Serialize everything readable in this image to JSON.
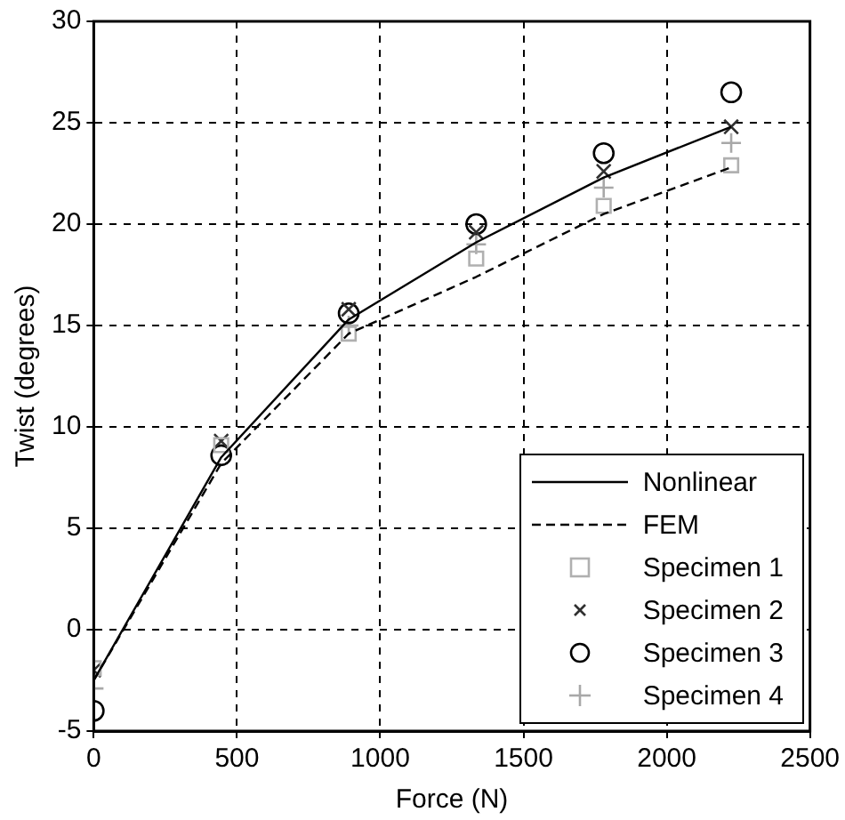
{
  "chart_data": {
    "type": "line",
    "xlabel": "Force (N)",
    "ylabel": "Twist (degrees)",
    "x": [
      0,
      445,
      890,
      1335,
      1780,
      2225
    ],
    "xlim": [
      0,
      2500
    ],
    "xticks": [
      0,
      500,
      1000,
      1500,
      2000,
      2500
    ],
    "ylim": [
      -5,
      30
    ],
    "yticks": [
      -5,
      0,
      5,
      10,
      15,
      20,
      25,
      30
    ],
    "grid": true,
    "legend": "bottom right",
    "series": [
      {
        "name": "Nonlinear",
        "type": "line",
        "color": "#000000",
        "line_style": "solid",
        "marker": "none",
        "values": [
          -2.5,
          8.5,
          15.3,
          19.1,
          22.3,
          24.8
        ]
      },
      {
        "name": "FEM",
        "type": "line",
        "color": "#000000",
        "line_style": "dashed",
        "marker": "none",
        "values": [
          -2.5,
          8.2,
          14.6,
          17.4,
          20.5,
          22.8
        ]
      },
      {
        "name": "Specimen 1",
        "type": "scatter",
        "color": "#b0b0b0",
        "marker": "square",
        "values": [
          -1.9,
          9.1,
          14.6,
          18.3,
          20.9,
          22.9
        ]
      },
      {
        "name": "Specimen 2",
        "type": "scatter",
        "color": "#303030",
        "marker": "cross",
        "values": [
          -2.0,
          9.3,
          15.8,
          19.6,
          22.6,
          24.8
        ]
      },
      {
        "name": "Specimen 3",
        "type": "scatter",
        "color": "#000000",
        "marker": "circle",
        "values": [
          -4.0,
          8.6,
          15.6,
          20.0,
          23.5,
          26.5
        ]
      },
      {
        "name": "Specimen 4",
        "type": "scatter",
        "color": "#a8a8a8",
        "marker": "plus",
        "values": [
          -2.9,
          null,
          15.0,
          19.0,
          21.8,
          24.0
        ]
      }
    ]
  }
}
